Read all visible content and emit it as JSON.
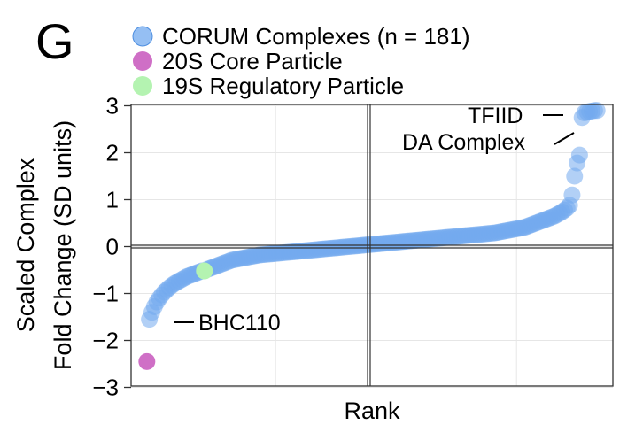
{
  "panel_label": "G",
  "chart_data": {
    "type": "scatter",
    "title": "",
    "xlabel": "Rank",
    "ylabel_lines": [
      "Scaled Complex",
      "Fold Change (SD units)"
    ],
    "xlim": [
      0,
      182
    ],
    "ylim": [
      -3,
      3
    ],
    "yticks": [
      {
        "value": 3,
        "label": "3"
      },
      {
        "value": 2,
        "label": "2"
      },
      {
        "value": 1,
        "label": "1"
      },
      {
        "value": 0,
        "label": "0"
      },
      {
        "value": -1,
        "label": "−1"
      },
      {
        "value": -2,
        "label": "−2"
      },
      {
        "value": -3,
        "label": "−3"
      }
    ],
    "grid": true,
    "legend": {
      "placement": "top",
      "entries": [
        {
          "label": "CORUM Complexes (n = 181)",
          "color": "#72a9ef"
        },
        {
          "label": "20S Core Particle",
          "color": "#cf6fc6"
        },
        {
          "label": "19S Regulatory Particle",
          "color": "#b4f3b1"
        }
      ]
    },
    "series": [
      {
        "name": "CORUM Complexes (n = 181)",
        "color": "#72a9ef",
        "points": [
          [
            2,
            -1.55
          ],
          [
            3,
            -1.4
          ],
          [
            4,
            -1.28
          ],
          [
            5,
            -1.18
          ],
          [
            6,
            -1.1
          ],
          [
            7,
            -1.03
          ],
          [
            8,
            -0.97
          ],
          [
            9,
            -0.92
          ],
          [
            10,
            -0.87
          ],
          [
            11,
            -0.83
          ],
          [
            12,
            -0.79
          ],
          [
            13,
            -0.76
          ],
          [
            14,
            -0.73
          ],
          [
            15,
            -0.7
          ],
          [
            16,
            -0.67
          ],
          [
            17,
            -0.64
          ],
          [
            18,
            -0.62
          ],
          [
            19,
            -0.6
          ],
          [
            20,
            -0.58
          ],
          [
            21,
            -0.56
          ],
          [
            22,
            -0.54
          ],
          [
            23,
            -0.52
          ],
          [
            25,
            -0.49
          ],
          [
            26,
            -0.47
          ],
          [
            27,
            -0.45
          ],
          [
            28,
            -0.43
          ],
          [
            29,
            -0.41
          ],
          [
            30,
            -0.39
          ],
          [
            31,
            -0.37
          ],
          [
            32,
            -0.35
          ],
          [
            33,
            -0.33
          ],
          [
            34,
            -0.31
          ],
          [
            35,
            -0.29
          ],
          [
            36,
            -0.28
          ],
          [
            37,
            -0.27
          ],
          [
            38,
            -0.26
          ],
          [
            39,
            -0.25
          ],
          [
            40,
            -0.24
          ],
          [
            41,
            -0.23
          ],
          [
            42,
            -0.22
          ],
          [
            43,
            -0.21
          ],
          [
            44,
            -0.2
          ],
          [
            45,
            -0.19
          ],
          [
            46,
            -0.18
          ],
          [
            47,
            -0.175
          ],
          [
            48,
            -0.17
          ],
          [
            49,
            -0.165
          ],
          [
            50,
            -0.16
          ],
          [
            51,
            -0.155
          ],
          [
            52,
            -0.15
          ],
          [
            53,
            -0.145
          ],
          [
            54,
            -0.14
          ],
          [
            55,
            -0.135
          ],
          [
            56,
            -0.13
          ],
          [
            57,
            -0.125
          ],
          [
            58,
            -0.12
          ],
          [
            59,
            -0.115
          ],
          [
            60,
            -0.11
          ],
          [
            61,
            -0.105
          ],
          [
            62,
            -0.1
          ],
          [
            63,
            -0.095
          ],
          [
            64,
            -0.09
          ],
          [
            65,
            -0.085
          ],
          [
            66,
            -0.08
          ],
          [
            67,
            -0.075
          ],
          [
            68,
            -0.07
          ],
          [
            69,
            -0.065
          ],
          [
            70,
            -0.06
          ],
          [
            71,
            -0.055
          ],
          [
            72,
            -0.05
          ],
          [
            73,
            -0.045
          ],
          [
            74,
            -0.04
          ],
          [
            75,
            -0.035
          ],
          [
            76,
            -0.03
          ],
          [
            77,
            -0.025
          ],
          [
            78,
            -0.02
          ],
          [
            79,
            -0.015
          ],
          [
            80,
            -0.01
          ],
          [
            81,
            -0.005
          ],
          [
            82,
            0.0
          ],
          [
            83,
            0.005
          ],
          [
            84,
            0.01
          ],
          [
            85,
            0.015
          ],
          [
            86,
            0.02
          ],
          [
            87,
            0.025
          ],
          [
            88,
            0.03
          ],
          [
            89,
            0.035
          ],
          [
            90,
            0.04
          ],
          [
            91,
            0.045
          ],
          [
            92,
            0.05
          ],
          [
            93,
            0.055
          ],
          [
            94,
            0.06
          ],
          [
            95,
            0.065
          ],
          [
            96,
            0.07
          ],
          [
            97,
            0.075
          ],
          [
            98,
            0.08
          ],
          [
            99,
            0.085
          ],
          [
            100,
            0.09
          ],
          [
            101,
            0.095
          ],
          [
            102,
            0.1
          ],
          [
            103,
            0.105
          ],
          [
            104,
            0.11
          ],
          [
            105,
            0.115
          ],
          [
            106,
            0.12
          ],
          [
            107,
            0.125
          ],
          [
            108,
            0.13
          ],
          [
            109,
            0.135
          ],
          [
            110,
            0.14
          ],
          [
            111,
            0.145
          ],
          [
            112,
            0.15
          ],
          [
            113,
            0.155
          ],
          [
            114,
            0.16
          ],
          [
            115,
            0.165
          ],
          [
            116,
            0.17
          ],
          [
            117,
            0.175
          ],
          [
            118,
            0.18
          ],
          [
            119,
            0.185
          ],
          [
            120,
            0.19
          ],
          [
            121,
            0.195
          ],
          [
            122,
            0.2
          ],
          [
            123,
            0.205
          ],
          [
            124,
            0.21
          ],
          [
            125,
            0.215
          ],
          [
            126,
            0.22
          ],
          [
            127,
            0.225
          ],
          [
            128,
            0.23
          ],
          [
            129,
            0.235
          ],
          [
            130,
            0.24
          ],
          [
            131,
            0.245
          ],
          [
            132,
            0.25
          ],
          [
            133,
            0.255
          ],
          [
            134,
            0.26
          ],
          [
            135,
            0.265
          ],
          [
            136,
            0.27
          ],
          [
            137,
            0.275
          ],
          [
            138,
            0.28
          ],
          [
            139,
            0.285
          ],
          [
            140,
            0.29
          ],
          [
            141,
            0.3
          ],
          [
            142,
            0.31
          ],
          [
            143,
            0.32
          ],
          [
            144,
            0.33
          ],
          [
            145,
            0.34
          ],
          [
            146,
            0.35
          ],
          [
            147,
            0.36
          ],
          [
            148,
            0.37
          ],
          [
            149,
            0.38
          ],
          [
            150,
            0.39
          ],
          [
            151,
            0.4
          ],
          [
            152,
            0.41
          ],
          [
            153,
            0.43
          ],
          [
            154,
            0.45
          ],
          [
            155,
            0.47
          ],
          [
            156,
            0.49
          ],
          [
            157,
            0.51
          ],
          [
            158,
            0.53
          ],
          [
            159,
            0.55
          ],
          [
            160,
            0.57
          ],
          [
            161,
            0.59
          ],
          [
            162,
            0.61
          ],
          [
            163,
            0.63
          ],
          [
            164,
            0.65
          ],
          [
            165,
            0.68
          ],
          [
            166,
            0.71
          ],
          [
            167,
            0.74
          ],
          [
            168,
            0.78
          ],
          [
            169,
            0.82
          ],
          [
            170,
            0.88
          ],
          [
            171,
            1.1
          ],
          [
            172,
            1.5
          ],
          [
            173,
            1.78
          ],
          [
            174,
            1.95
          ],
          [
            175,
            2.75
          ],
          [
            176,
            2.85
          ],
          [
            177,
            2.87
          ],
          [
            178,
            2.88
          ],
          [
            179,
            2.89
          ],
          [
            180,
            2.9
          ],
          [
            181,
            2.9
          ]
        ]
      },
      {
        "name": "20S Core Particle",
        "color": "#cf6fc6",
        "points": [
          [
            1,
            -2.45
          ]
        ]
      },
      {
        "name": "19S Regulatory Particle",
        "color": "#b4f3b1",
        "points": [
          [
            24,
            -0.52
          ]
        ]
      }
    ],
    "annotations": [
      {
        "text": "TFIID",
        "x": 176,
        "y": 2.9
      },
      {
        "text": "DA Complex",
        "x": 173,
        "y": 2.2
      },
      {
        "text": "BHC110",
        "x": 2,
        "y": -1.6
      }
    ]
  }
}
